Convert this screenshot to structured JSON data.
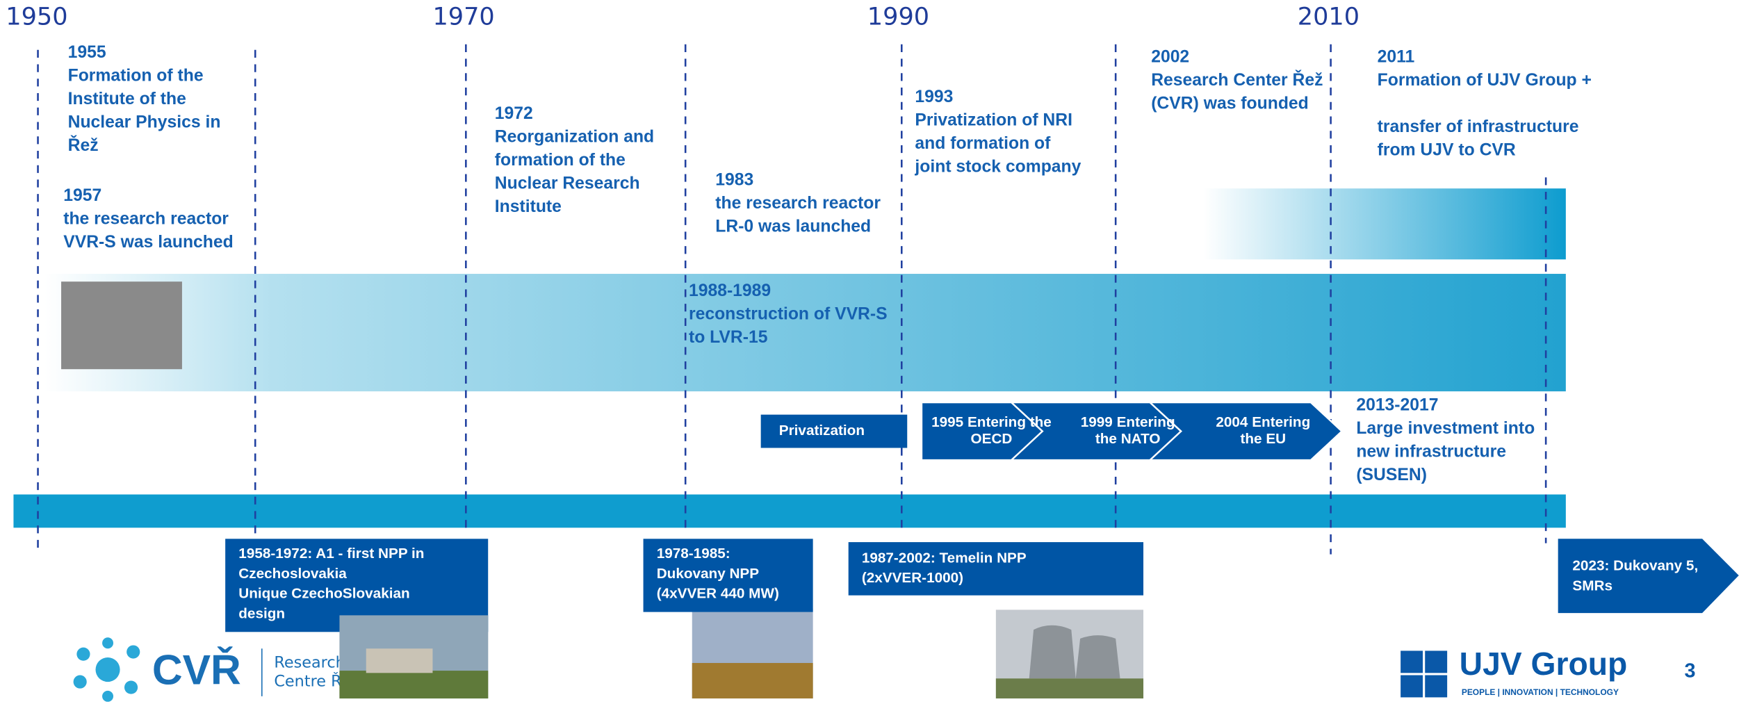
{
  "years": [
    "1950",
    "1970",
    "1990",
    "2010"
  ],
  "events": [
    {
      "title": "1955",
      "lines": [
        "Formation of the",
        "Institute of the",
        "Nuclear Physics in",
        "Řež"
      ]
    },
    {
      "title": "1957",
      "lines": [
        "the research reactor",
        "VVR-S was launched"
      ]
    },
    {
      "title": "1972",
      "lines": [
        "Reorganization and",
        "formation of the",
        "Nuclear Research",
        "Institute"
      ]
    },
    {
      "title": "1983",
      "lines": [
        "the research reactor",
        "LR-0 was launched"
      ]
    },
    {
      "title": "1988-1989",
      "lines": [
        "reconstruction of VVR-S",
        "to LVR-15"
      ]
    },
    {
      "title": "1993",
      "lines": [
        "Privatization of NRI",
        "and formation of",
        "joint stock company"
      ]
    },
    {
      "title": "2002",
      "lines": [
        "Research Center Řež",
        "(CVR) was founded"
      ]
    },
    {
      "title": "2011",
      "lines": [
        "Formation of UJV Group +",
        "transfer of infrastructure",
        "from UJV to CVR"
      ]
    },
    {
      "title": "2013-2017",
      "lines": [
        "Large investment into",
        "new infrastructure",
        "(SUSEN)"
      ]
    }
  ],
  "arrows": [
    {
      "lines": [
        "Privatization"
      ]
    },
    {
      "lines": [
        "1995 Entering the",
        "OECD"
      ]
    },
    {
      "lines": [
        "1999 Entering",
        "the NATO"
      ]
    },
    {
      "lines": [
        "2004 Entering",
        "the EU"
      ]
    }
  ],
  "boxes": [
    {
      "lines": [
        "1958-1972: A1 - first NPP in",
        "Czechoslovakia",
        "Unique CzechoSlovakian",
        "design"
      ]
    },
    {
      "lines": [
        "1978-1985:",
        "Dukovany NPP",
        "(4xVVER 440 MW)"
      ]
    },
    {
      "lines": [
        "1987-2002: Temelin NPP",
        "(2xVVER-1000)"
      ]
    },
    {
      "lines": [
        "2023: Dukovany 5,",
        "SMRs"
      ]
    }
  ],
  "footer": {
    "cvr": "CVŘ",
    "cvr_sub": [
      "Research",
      "Centre Řež"
    ],
    "ujv": "UJV Group",
    "tagline": "PEOPLE | INNOVATION | TECHNOLOGY",
    "page": "3"
  }
}
